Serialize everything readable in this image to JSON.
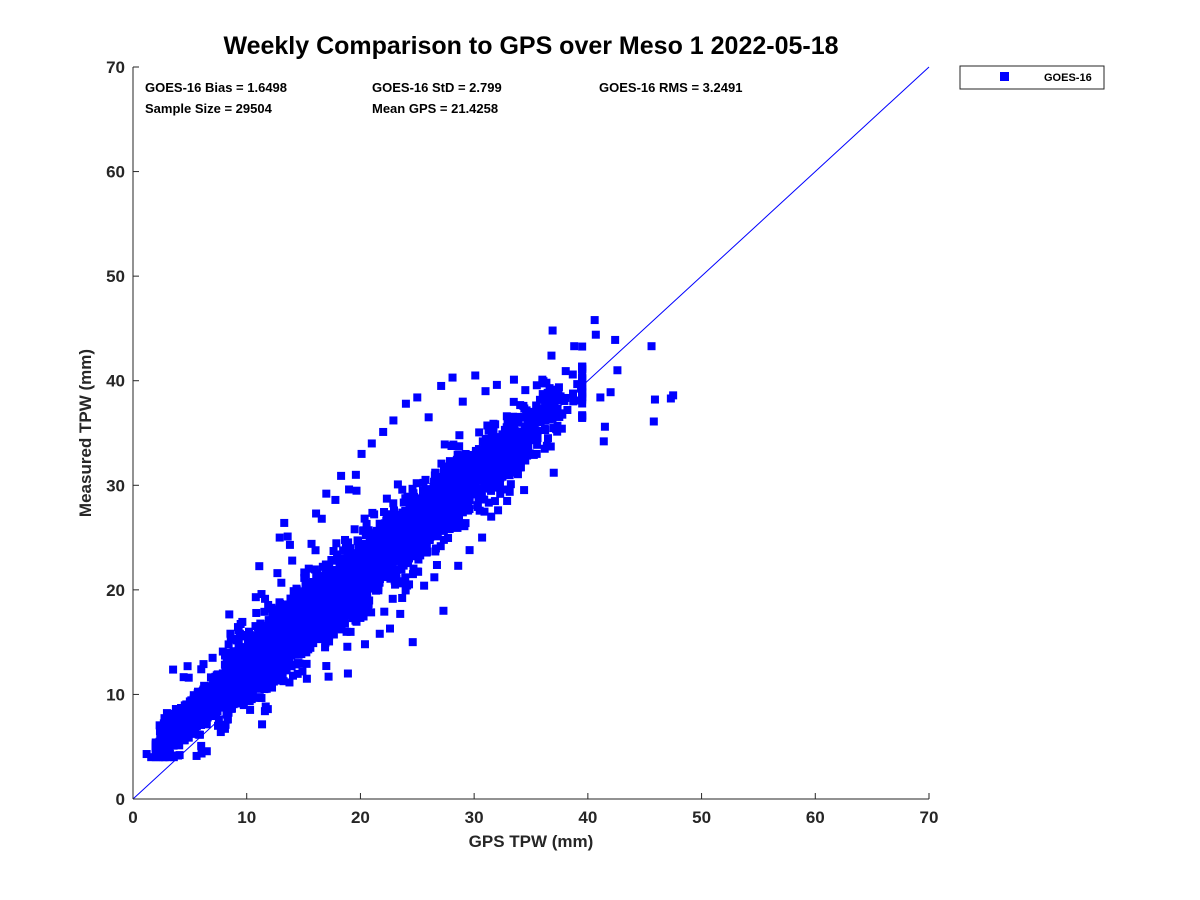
{
  "chart_data": {
    "type": "scatter",
    "title": "Weekly Comparison to GPS over Meso 1 2022-05-18",
    "xlabel": "GPS TPW (mm)",
    "ylabel": "Measured TPW (mm)",
    "xlim": [
      0,
      70
    ],
    "ylim": [
      0,
      70
    ],
    "xticks": [
      "0",
      "10",
      "20",
      "30",
      "40",
      "50",
      "60",
      "70"
    ],
    "yticks": [
      "0",
      "10",
      "20",
      "30",
      "40",
      "50",
      "60",
      "70"
    ],
    "grid": false,
    "legend_position": "outside-top-right",
    "legend": [
      "GOES-16"
    ],
    "reference_line": {
      "name": "1:1 line",
      "x": [
        0,
        70
      ],
      "y": [
        0,
        70
      ]
    },
    "stats": {
      "bias": "GOES-16 Bias = 1.6498",
      "std": "GOES-16 StD = 2.799",
      "rms": "GOES-16 RMS = 3.2491",
      "sample_size": "Sample Size = 29504",
      "mean_gps": "Mean GPS = 21.4258"
    },
    "colors": {
      "series": "#0000ff",
      "axes": "#262626"
    },
    "series": [
      {
        "name": "GOES-16",
        "distribution": {
          "sample_size": 29504,
          "mean_gps": 21.4258,
          "bias": 1.6498,
          "std": 2.799,
          "x_range": [
            1,
            48
          ],
          "y_range": [
            4,
            46
          ]
        },
        "points": [
          [
            1.2,
            4.3
          ],
          [
            1.6,
            4.0
          ],
          [
            2.2,
            5.1
          ],
          [
            2.8,
            6.8
          ],
          [
            3.5,
            7.5
          ],
          [
            4.1,
            4.2
          ],
          [
            4.8,
            12.7
          ],
          [
            4.9,
            11.6
          ],
          [
            5.5,
            9.8
          ],
          [
            6.2,
            12.9
          ],
          [
            7.0,
            13.5
          ],
          [
            7.9,
            14.1
          ],
          [
            8.6,
            15.3
          ],
          [
            9.4,
            15.8
          ],
          [
            10.2,
            16.0
          ],
          [
            10.8,
            19.3
          ],
          [
            11.3,
            19.6
          ],
          [
            11.6,
            8.4
          ],
          [
            12.1,
            18.2
          ],
          [
            12.7,
            21.6
          ],
          [
            12.9,
            25.0
          ],
          [
            13.3,
            26.4
          ],
          [
            13.6,
            25.1
          ],
          [
            13.8,
            24.3
          ],
          [
            14.0,
            22.8
          ],
          [
            14.4,
            20.0
          ],
          [
            14.9,
            12.2
          ],
          [
            15.2,
            21.5
          ],
          [
            15.7,
            24.4
          ],
          [
            16.1,
            27.3
          ],
          [
            16.6,
            26.8
          ],
          [
            17.0,
            29.2
          ],
          [
            17.2,
            11.7
          ],
          [
            17.8,
            28.6
          ],
          [
            18.3,
            30.9
          ],
          [
            18.9,
            12.0
          ],
          [
            19.0,
            29.6
          ],
          [
            19.6,
            31.0
          ],
          [
            20.1,
            33.0
          ],
          [
            20.4,
            14.8
          ],
          [
            21.0,
            34.0
          ],
          [
            21.7,
            15.8
          ],
          [
            22.0,
            35.1
          ],
          [
            22.6,
            16.3
          ],
          [
            22.9,
            36.2
          ],
          [
            23.5,
            17.7
          ],
          [
            24.0,
            37.8
          ],
          [
            24.6,
            15.0
          ],
          [
            25.0,
            38.4
          ],
          [
            25.6,
            20.4
          ],
          [
            26.0,
            36.5
          ],
          [
            26.5,
            21.2
          ],
          [
            27.1,
            39.5
          ],
          [
            27.3,
            18.0
          ],
          [
            28.1,
            40.3
          ],
          [
            28.6,
            22.3
          ],
          [
            29.0,
            38.0
          ],
          [
            29.6,
            23.8
          ],
          [
            30.1,
            40.5
          ],
          [
            30.7,
            25.0
          ],
          [
            31.0,
            39.0
          ],
          [
            31.5,
            27.0
          ],
          [
            32.0,
            39.6
          ],
          [
            32.9,
            28.5
          ],
          [
            33.5,
            40.1
          ],
          [
            34.0,
            31.7
          ],
          [
            34.5,
            39.1
          ],
          [
            35.5,
            33.0
          ],
          [
            36.0,
            40.1
          ],
          [
            36.8,
            42.4
          ],
          [
            36.9,
            44.8
          ],
          [
            37.0,
            31.2
          ],
          [
            37.6,
            38.5
          ],
          [
            38.2,
            37.2
          ],
          [
            38.8,
            43.3
          ],
          [
            39.5,
            36.6
          ],
          [
            40.6,
            45.8
          ],
          [
            40.7,
            44.4
          ],
          [
            41.1,
            38.4
          ],
          [
            41.4,
            34.2
          ],
          [
            41.5,
            35.6
          ],
          [
            42.0,
            38.9
          ],
          [
            42.4,
            43.9
          ],
          [
            42.6,
            41.0
          ],
          [
            45.6,
            43.3
          ],
          [
            45.9,
            38.2
          ],
          [
            45.8,
            36.1
          ],
          [
            47.3,
            38.3
          ],
          [
            47.5,
            38.6
          ]
        ]
      }
    ]
  }
}
